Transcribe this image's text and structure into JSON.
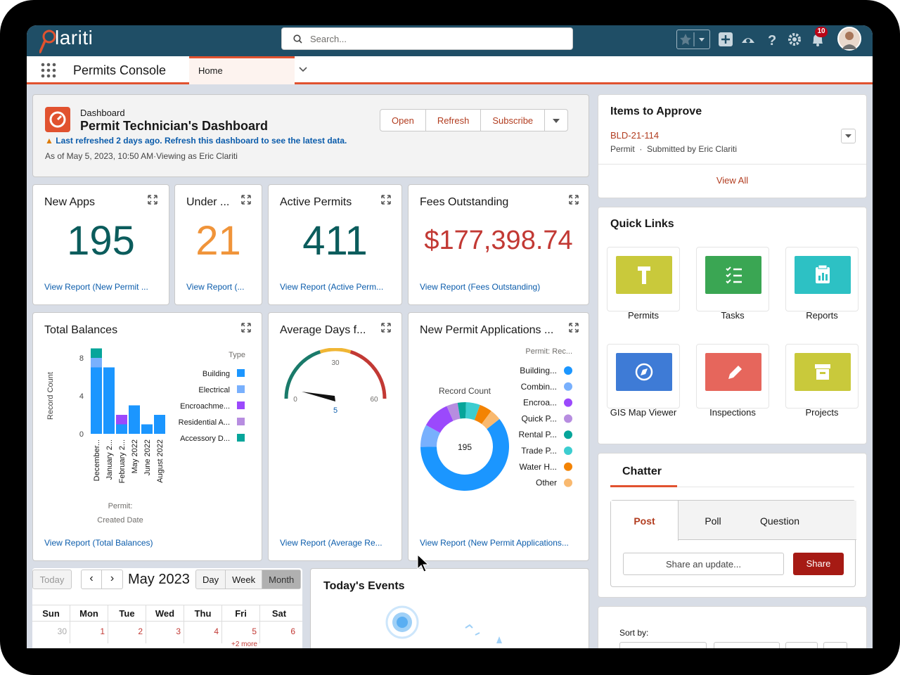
{
  "app": {
    "logo_text": "lariti",
    "name": "Permits Console",
    "tab_home": "Home"
  },
  "search": {
    "placeholder": "Search..."
  },
  "topbar": {
    "notification_count": "10"
  },
  "dashboard": {
    "eyebrow": "Dashboard",
    "title": "Permit Technician's Dashboard",
    "warning": "Last refreshed 2 days ago. Refresh this dashboard to see the latest data.",
    "as_of": "As of May 5, 2023, 10:50 AM·Viewing as Eric Clariti",
    "buttons": {
      "open": "Open",
      "refresh": "Refresh",
      "subscribe": "Subscribe"
    }
  },
  "metrics": [
    {
      "title": "New Apps",
      "value": "195",
      "color": "#0b5c5c",
      "link": "View Report (New Permit ..."
    },
    {
      "title": "Under ...",
      "value": "21",
      "color": "#f0943a",
      "link": "View Report (..."
    },
    {
      "title": "Active Permits",
      "value": "411",
      "color": "#0b5c5c",
      "link": "View Report (Active Perm..."
    },
    {
      "title": "Fees Outstanding",
      "value": "$177,398.74",
      "color": "#c23934",
      "link": "View Report (Fees Outstanding)"
    }
  ],
  "total_balances": {
    "title": "Total Balances",
    "link": "View Report (Total Balances)",
    "chart_data": {
      "type": "bar",
      "ylabel": "Record Count",
      "xlabel_line1": "Permit:",
      "xlabel_line2": "Created Date",
      "legend_title": "Type",
      "yticks": [
        "8",
        "4",
        "0"
      ],
      "categories": [
        "December...",
        "January 2...",
        "February 2...",
        "May 2022",
        "June 2022",
        "August 2022"
      ],
      "series": [
        {
          "name": "Building",
          "color": "#1b96ff",
          "values": [
            7,
            7,
            1,
            3,
            1,
            2
          ]
        },
        {
          "name": "Electrical",
          "color": "#78b0fd",
          "values": [
            1,
            0,
            0,
            0,
            0,
            0
          ]
        },
        {
          "name": "Encroachme...",
          "color": "#9b49fc",
          "values": [
            0,
            0,
            1,
            0,
            0,
            0
          ]
        },
        {
          "name": "Residential A...",
          "color": "#b78de0",
          "values": [
            0,
            0,
            0,
            0,
            0,
            0
          ]
        },
        {
          "name": "Accessory D...",
          "color": "#06a59a",
          "values": [
            1,
            0,
            0,
            0,
            0,
            0
          ]
        }
      ],
      "ylim": [
        0,
        8
      ]
    }
  },
  "avg_days": {
    "title": "Average Days f...",
    "link": "View Report (Average Re...",
    "chart_data": {
      "type": "gauge",
      "min": 0,
      "max": 60,
      "mid": 30,
      "value": 5,
      "labels": {
        "min": "0",
        "max": "60",
        "mid": "30",
        "value": "5"
      }
    }
  },
  "new_apps_chart": {
    "title": "New Permit Applications ...",
    "link": "View Report (New Permit Applications...",
    "chart_data": {
      "type": "pie",
      "center_label": "Record Count",
      "total": "195",
      "legend_title": "Permit: Rec...",
      "slices": [
        {
          "name": "Building...",
          "value": 118,
          "color": "#1b96ff"
        },
        {
          "name": "Combin...",
          "value": 16,
          "color": "#78b0fd"
        },
        {
          "name": "Encroa...",
          "value": 20,
          "color": "#9b49fc"
        },
        {
          "name": "Quick P...",
          "value": 8,
          "color": "#b78de0"
        },
        {
          "name": "Rental P...",
          "value": 6,
          "color": "#06a59a"
        },
        {
          "name": "Trade P...",
          "value": 10,
          "color": "#3ccdd0"
        },
        {
          "name": "Water H...",
          "value": 9,
          "color": "#f38303"
        },
        {
          "name": "Other",
          "value": 8,
          "color": "#f9b96f"
        }
      ]
    }
  },
  "calendar": {
    "today": "Today",
    "month_label": "May 2023",
    "views": [
      "Day",
      "Week",
      "Month"
    ],
    "days": [
      "Sun",
      "Mon",
      "Tue",
      "Wed",
      "Thu",
      "Fri",
      "Sat"
    ],
    "first_row": [
      "30",
      "1",
      "2",
      "3",
      "4",
      "5",
      "6"
    ],
    "more": "+2 more"
  },
  "events": {
    "title": "Today's Events"
  },
  "items_to_approve": {
    "title": "Items to Approve",
    "item_id": "BLD-21-114",
    "item_meta": "Permit  ·  Submitted by Eric Clariti",
    "view_all": "View All"
  },
  "quick_links": {
    "title": "Quick Links",
    "items": [
      {
        "label": "Permits",
        "color": "#c9c93b"
      },
      {
        "label": "Tasks",
        "color": "#3aa653"
      },
      {
        "label": "Reports",
        "color": "#2dc1c4"
      },
      {
        "label": "GIS Map Viewer",
        "color": "#3e7bd6"
      },
      {
        "label": "Inspections",
        "color": "#e6665c"
      },
      {
        "label": "Projects",
        "color": "#c9c93b"
      }
    ]
  },
  "chatter": {
    "title": "Chatter",
    "tabs": [
      "Post",
      "Poll",
      "Question"
    ],
    "placeholder": "Share an update...",
    "share": "Share"
  },
  "sort": {
    "label": "Sort by:"
  }
}
